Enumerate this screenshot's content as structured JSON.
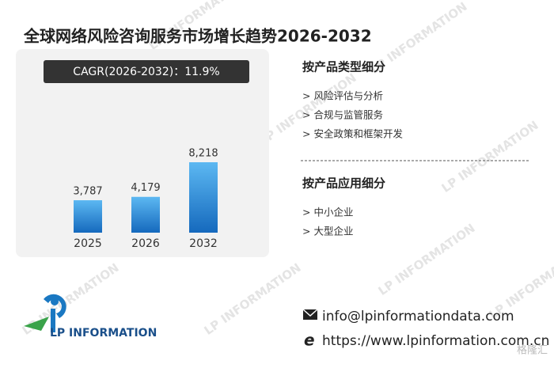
{
  "title": "全球网络风险咨询服务市场增长趋势2026-2032",
  "chart_data": {
    "type": "bar",
    "cagr": "CAGR(2026-2032)：11.9%",
    "categories": [
      "2025",
      "2026",
      "2032"
    ],
    "values": [
      3787,
      4179,
      8218
    ],
    "value_labels": [
      "3,787",
      "4,179",
      "8,218"
    ]
  },
  "segments": [
    {
      "heading": "按产品类型细分",
      "items": [
        "> 风险评估与分析",
        "> 合规与监管服务",
        "> 安全政策和框架开发"
      ]
    },
    {
      "heading": "按产品应用细分",
      "items": [
        "> 中小企业",
        "> 大型企业"
      ]
    }
  ],
  "logo": "LP INFORMATION",
  "contact": {
    "email": "info@lpinformationdata.com",
    "website": "https://www.lpinformation.com.cn"
  },
  "watermark": "LP INFORMATION",
  "badge": "格隆汇"
}
